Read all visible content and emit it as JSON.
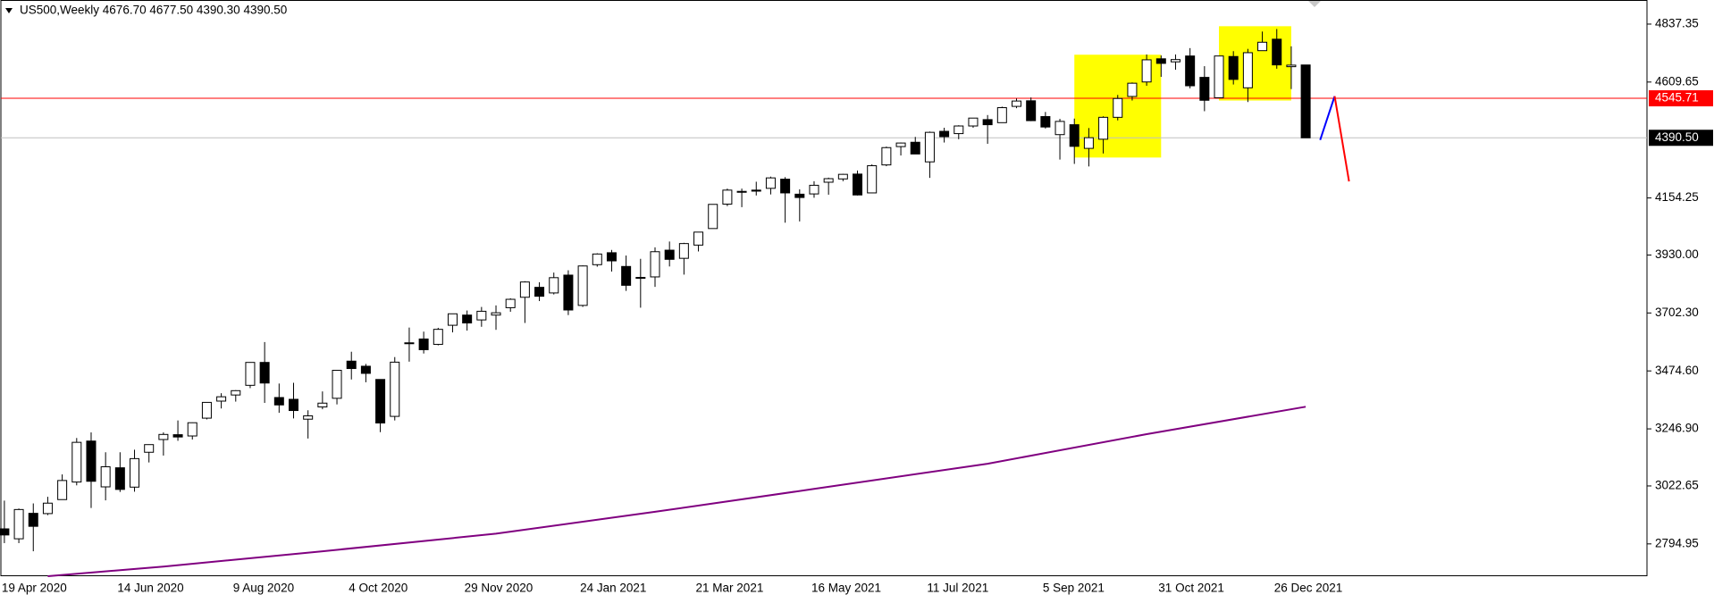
{
  "chart_data": {
    "type": "candlestick",
    "title": "US500,Weekly  4676.70 4677.50 4390.30 4390.50",
    "categories": [
      "19 Apr 2020",
      null,
      null,
      null,
      null,
      null,
      null,
      null,
      "14 Jun 2020",
      null,
      null,
      null,
      null,
      null,
      null,
      null,
      "9 Aug 2020",
      null,
      null,
      null,
      null,
      null,
      null,
      null,
      "4 Oct 2020",
      null,
      null,
      null,
      null,
      null,
      null,
      null,
      "29 Nov 2020",
      null,
      null,
      null,
      null,
      null,
      null,
      null,
      "24 Jan 2021",
      null,
      null,
      null,
      null,
      null,
      null,
      null,
      "21 Mar 2021",
      null,
      null,
      null,
      null,
      null,
      null,
      null,
      "16 May 2021",
      null,
      null,
      null,
      null,
      null,
      null,
      null,
      "11 Jul 2021",
      null,
      null,
      null,
      null,
      null,
      null,
      null,
      "5 Sep 2021",
      null,
      null,
      null,
      null,
      null,
      null,
      null,
      "31 Oct 2021",
      null,
      null,
      null,
      null,
      null,
      null,
      null,
      "26 Dec 2021",
      null,
      null
    ],
    "open": [
      2854,
      2815,
      2915,
      2914,
      2969,
      3038,
      3199,
      3019,
      3094,
      3018,
      3155,
      3205,
      3224,
      3219,
      3289,
      3356,
      3380,
      3418,
      3508,
      3370,
      3363,
      3285,
      3333,
      3367,
      3513,
      3493,
      3441,
      3296,
      3583,
      3600,
      3579,
      3654,
      3694,
      3675,
      3694,
      3723,
      3764,
      3803,
      3781,
      3851,
      3732,
      3892,
      3939,
      3885,
      3842,
      3844,
      3949,
      3917,
      3969,
      4034,
      4130,
      4179,
      4185,
      4192,
      4228,
      4169,
      4170,
      4216,
      4229,
      4248,
      4174,
      4284,
      4356,
      4373,
      4296,
      4416,
      4407,
      4437,
      4462,
      4450,
      4514,
      4536,
      4474,
      4403,
      4442,
      4349,
      4385,
      4471,
      4553,
      4610,
      4701,
      4689,
      4712,
      4628,
      4548,
      4710,
      4587,
      4733,
      4778,
      4670,
      4676.7
    ],
    "high": [
      2965,
      2934,
      2954,
      2980,
      3068,
      3211,
      3233,
      3155,
      3155,
      3165,
      3186,
      3233,
      3280,
      3272,
      3352,
      3387,
      3399,
      3509,
      3588,
      3425,
      3428,
      3320,
      3394,
      3477,
      3550,
      3502,
      3441,
      3529,
      3645,
      3629,
      3644,
      3699,
      3712,
      3726,
      3732,
      3760,
      3827,
      3823,
      3861,
      3870,
      3889,
      3937,
      3950,
      3928,
      3915,
      3960,
      3983,
      3978,
      4020,
      4129,
      4191,
      4191,
      4218,
      4238,
      4236,
      4188,
      4220,
      4234,
      4249,
      4262,
      4286,
      4356,
      4372,
      4394,
      4415,
      4430,
      4440,
      4468,
      4480,
      4513,
      4545,
      4549,
      4492,
      4465,
      4466,
      4429,
      4475,
      4559,
      4608,
      4718,
      4714,
      4718,
      4743,
      4672,
      4713,
      4731,
      4740,
      4808,
      4818,
      4750,
      4677.5
    ],
    "low": [
      2798,
      2798,
      2766,
      2908,
      2969,
      3025,
      2936,
      2966,
      2999,
      3000,
      3115,
      3142,
      3200,
      3205,
      3284,
      3327,
      3354,
      3407,
      3349,
      3310,
      3288,
      3209,
      3324,
      3343,
      3441,
      3430,
      3234,
      3280,
      3511,
      3543,
      3575,
      3626,
      3633,
      3648,
      3636,
      3707,
      3663,
      3749,
      3775,
      3694,
      3726,
      3884,
      3865,
      3789,
      3723,
      3805,
      3885,
      3853,
      3944,
      4034,
      4122,
      4118,
      4164,
      4168,
      4057,
      4062,
      4155,
      4167,
      4220,
      4164,
      4174,
      4279,
      4321,
      4327,
      4233,
      4372,
      4385,
      4430,
      4367,
      4450,
      4507,
      4456,
      4427,
      4305,
      4288,
      4278,
      4329,
      4459,
      4537,
      4595,
      4630,
      4658,
      4585,
      4495,
      4548,
      4600,
      4531,
      4733,
      4662,
      4582,
      4390.3
    ],
    "close": [
      2830,
      2930,
      2864,
      2955,
      3044,
      3194,
      3041,
      3098,
      3009,
      3130,
      3185,
      3225,
      3215,
      3271,
      3351,
      3373,
      3397,
      3508,
      3427,
      3341,
      3319,
      3298,
      3348,
      3477,
      3484,
      3465,
      3270,
      3509,
      3585,
      3558,
      3638,
      3699,
      3663,
      3709,
      3703,
      3756,
      3824,
      3768,
      3841,
      3714,
      3887,
      3934,
      3907,
      3811,
      3842,
      3943,
      3913,
      3975,
      4020,
      4129,
      4185,
      4180,
      4181,
      4233,
      4174,
      4156,
      4204,
      4230,
      4247,
      4166,
      4281,
      4352,
      4370,
      4327,
      4412,
      4395,
      4437,
      4468,
      4442,
      4509,
      4535,
      4458,
      4433,
      4455,
      4357,
      4391,
      4471,
      4545,
      4605,
      4697,
      4683,
      4698,
      4595,
      4538,
      4712,
      4620,
      4725,
      4766,
      4677,
      4676,
      4390.5
    ],
    "up_color": "#ffffff",
    "down_color": "#000000",
    "ylim": [
      2668,
      4932
    ],
    "yticks": [
      4837.35,
      4609.65,
      4154.25,
      {
        "value": 3930,
        "label": "3930.00"
      },
      {
        "value": 3702.3,
        "label": "3702.30"
      },
      {
        "value": 3474.6,
        "label": "3474.60"
      },
      {
        "value": 3246.9,
        "label": "3246.90"
      },
      3022.65,
      2794.95
    ],
    "hlines": [
      {
        "value": 4545.71,
        "color": "#ff0000",
        "label_bg": "#ff0000"
      },
      {
        "value": 4390.5,
        "label": "4390.50",
        "color": "#c0c0c0",
        "label_bg": "#000000"
      }
    ],
    "ma": {
      "color": "#800080",
      "x": [
        3,
        11,
        22,
        34,
        45,
        56,
        68,
        79,
        90
      ],
      "values": [
        2668,
        2706,
        2766,
        2835,
        2921,
        3011,
        3110,
        3226,
        3334
      ]
    },
    "rects": [
      {
        "color": "#ffff00",
        "x": [
          74,
          80
        ],
        "y": [
          4313,
          4717
        ]
      },
      {
        "color": "#ffff00",
        "x": [
          84,
          89
        ],
        "y": [
          4537,
          4829
        ]
      }
    ],
    "lines": [
      {
        "color": "#0000ff",
        "x": [
          91,
          92
        ],
        "values": [
          4382,
          4554
        ]
      },
      {
        "color": "#ff0000",
        "x": [
          92,
          93
        ],
        "values": [
          4554,
          4219
        ]
      }
    ]
  }
}
